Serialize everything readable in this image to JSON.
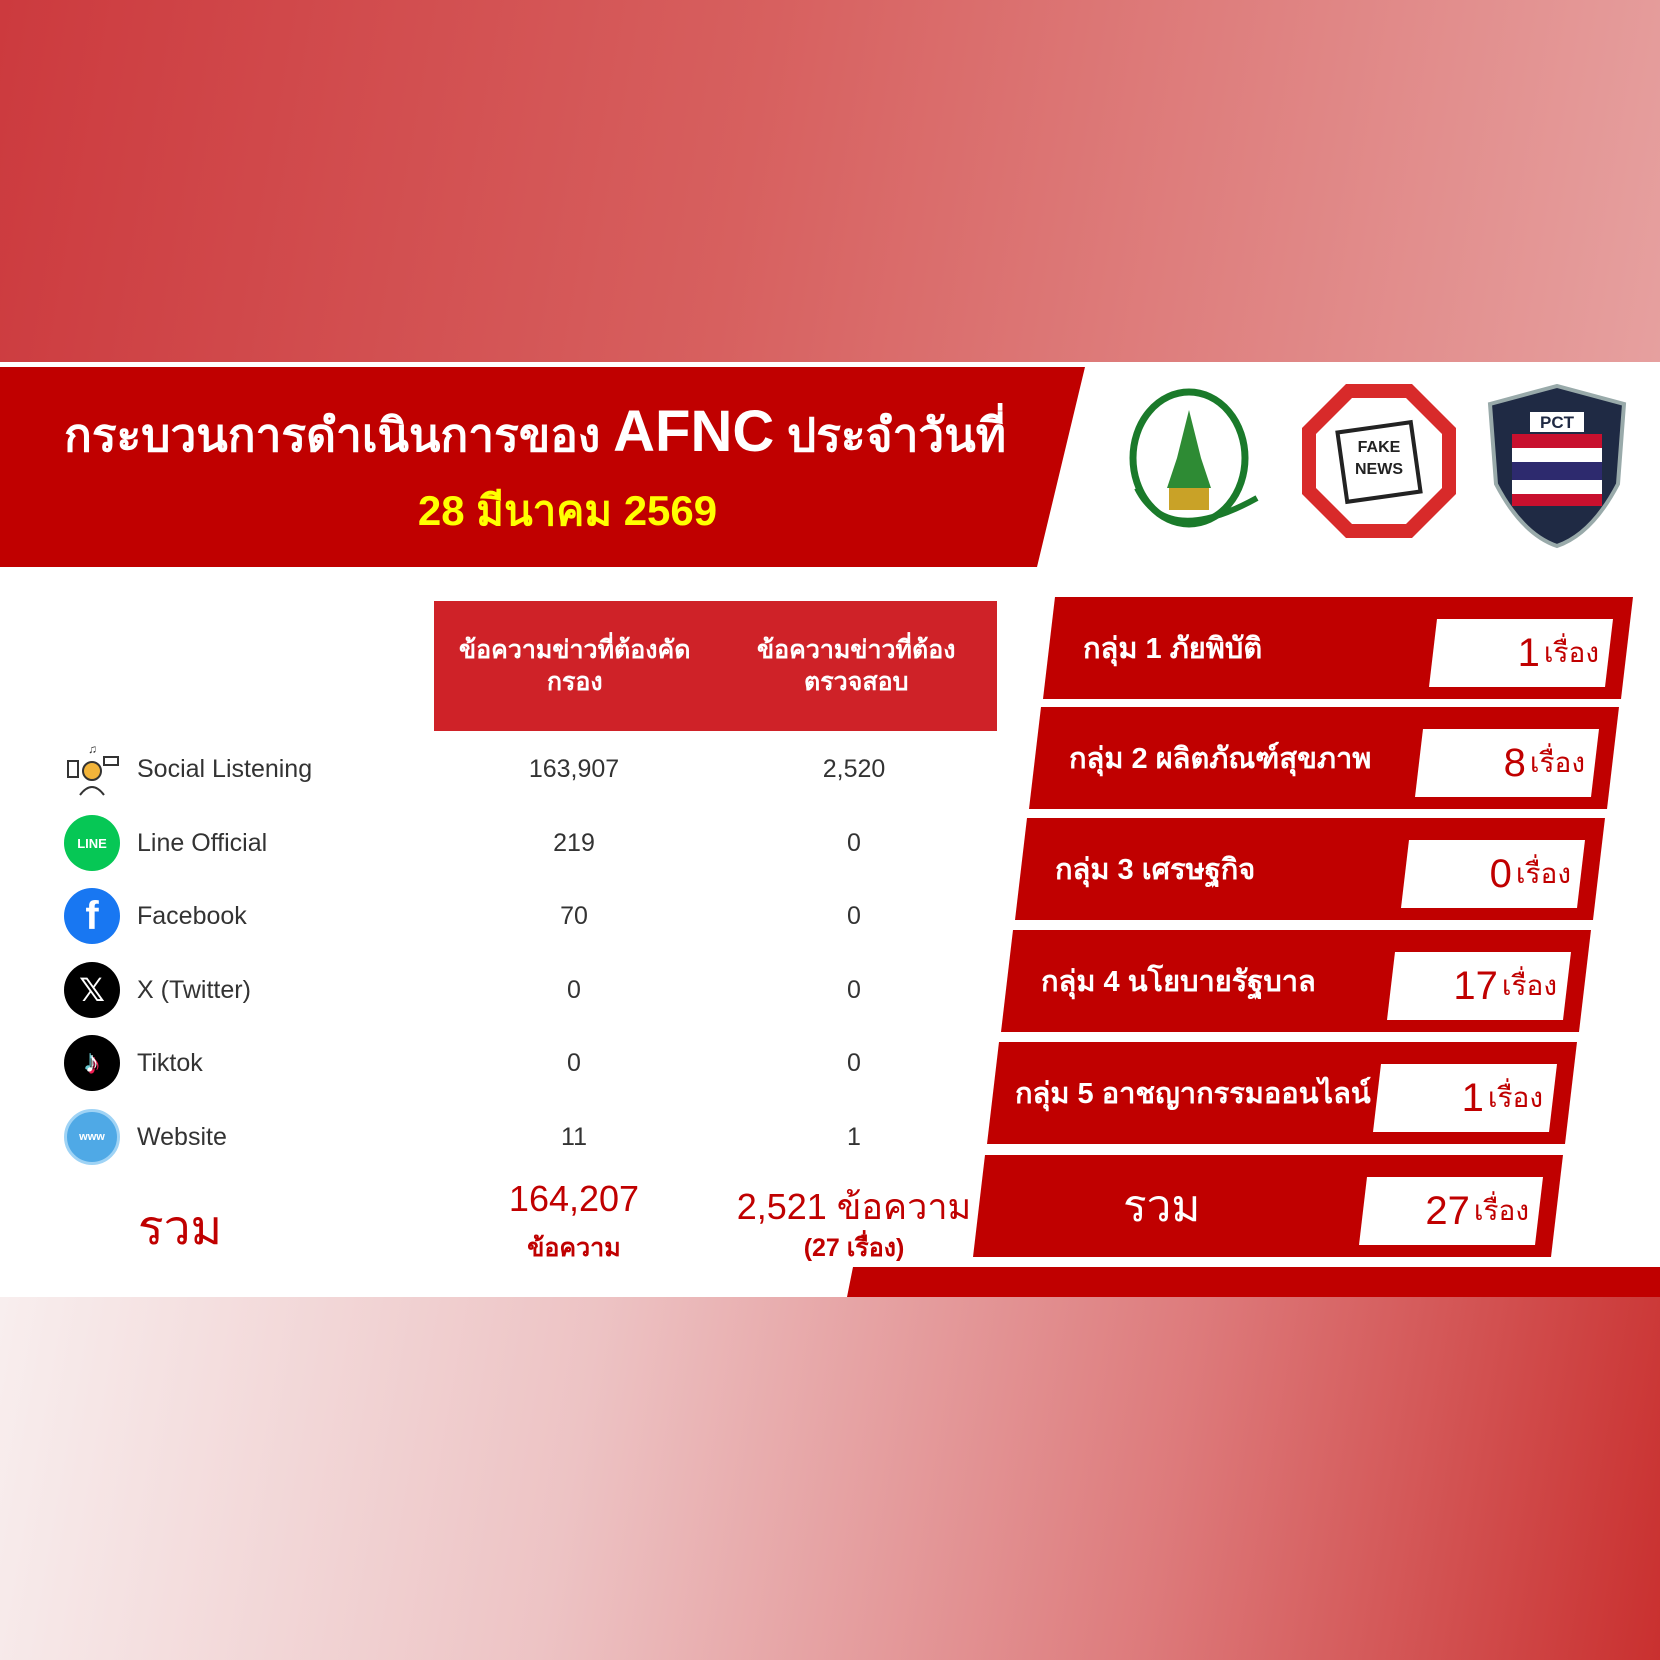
{
  "header": {
    "title_pre": "กระบวนการดำเนินการของ",
    "title_brand": "AFNC",
    "title_post": "ประจำวันที่",
    "date": "28 มีนาคม 2569"
  },
  "logos": [
    {
      "name": "ministry-digital-economy-logo",
      "text": "Ministry of Digital Economy and Society"
    },
    {
      "name": "anti-fake-news-logo",
      "text": "ANTI FAKE NEWS THAILAND"
    },
    {
      "name": "pct-logo",
      "text": "PCT Police Cyber Taskforce"
    }
  ],
  "table": {
    "headers": [
      "ข้อความข่าวที่ต้องคัดกรอง",
      "ข้อความข่าวที่ต้องตรวจสอบ"
    ],
    "rows": [
      {
        "icon": "social-listening-icon",
        "label": "Social Listening",
        "screen": "163,907",
        "verify": "2,520"
      },
      {
        "icon": "line-icon",
        "label": "Line Official",
        "screen": "219",
        "verify": "0"
      },
      {
        "icon": "facebook-icon",
        "label": "Facebook",
        "screen": "70",
        "verify": "0"
      },
      {
        "icon": "x-twitter-icon",
        "label": "X (Twitter)",
        "screen": "0",
        "verify": "0"
      },
      {
        "icon": "tiktok-icon",
        "label": "Tiktok",
        "screen": "0",
        "verify": "0"
      },
      {
        "icon": "website-icon",
        "label": "Website",
        "screen": "11",
        "verify": "1"
      }
    ],
    "total": {
      "label": "รวม",
      "screen": "164,207",
      "screen_unit": "ข้อความ",
      "verify": "2,521 ข้อความ",
      "verify_note": "(27 เรื่อง)"
    }
  },
  "groups": [
    {
      "label": "กลุ่ม 1 ภัยพิบัติ",
      "count": "1",
      "unit": "เรื่อง"
    },
    {
      "label": "กลุ่ม 2 ผลิตภัณฑ์สุขภาพ",
      "count": "8",
      "unit": "เรื่อง"
    },
    {
      "label": "กลุ่ม 3 เศรษฐกิจ",
      "count": "0",
      "unit": "เรื่อง"
    },
    {
      "label": "กลุ่ม 4 นโยบายรัฐบาล",
      "count": "17",
      "unit": "เรื่อง"
    },
    {
      "label": "กลุ่ม 5 อาชญากรรมออนไลน์",
      "count": "1",
      "unit": "เรื่อง"
    },
    {
      "label": "รวม",
      "count": "27",
      "unit": "เรื่อง"
    }
  ],
  "colors": {
    "primary_red": "#c00000",
    "header_cell_red": "#cf2228",
    "date_yellow": "#ffff00"
  }
}
